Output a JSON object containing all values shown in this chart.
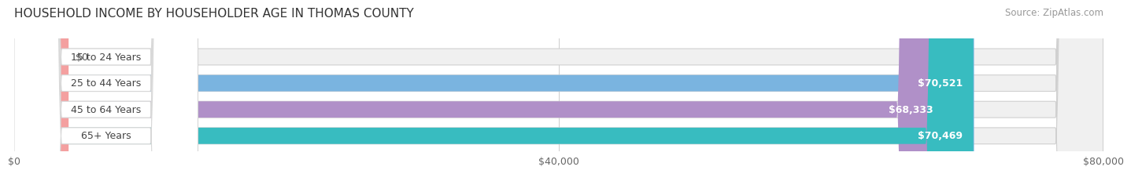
{
  "title": "HOUSEHOLD INCOME BY HOUSEHOLDER AGE IN THOMAS COUNTY",
  "source": "Source: ZipAtlas.com",
  "categories": [
    "15 to 24 Years",
    "25 to 44 Years",
    "45 to 64 Years",
    "65+ Years"
  ],
  "values": [
    0,
    70521,
    68333,
    70469
  ],
  "bar_colors": [
    "#f4a0a0",
    "#7ab4e0",
    "#b090c8",
    "#38bcc0"
  ],
  "bg_colors": [
    "#f0f0f0",
    "#f0f0f0",
    "#f0f0f0",
    "#f0f0f0"
  ],
  "label_bg_colors": [
    "#ffffff",
    "#ffffff",
    "#ffffff",
    "#ffffff"
  ],
  "value_labels": [
    "$0",
    "$70,521",
    "$68,333",
    "$70,469"
  ],
  "xlim": [
    0,
    80000
  ],
  "xticks": [
    0,
    40000,
    80000
  ],
  "xtick_labels": [
    "$0",
    "$40,000",
    "$80,000"
  ],
  "title_fontsize": 11,
  "source_fontsize": 8.5,
  "label_fontsize": 9,
  "value_fontsize": 9,
  "bar_height": 0.62
}
